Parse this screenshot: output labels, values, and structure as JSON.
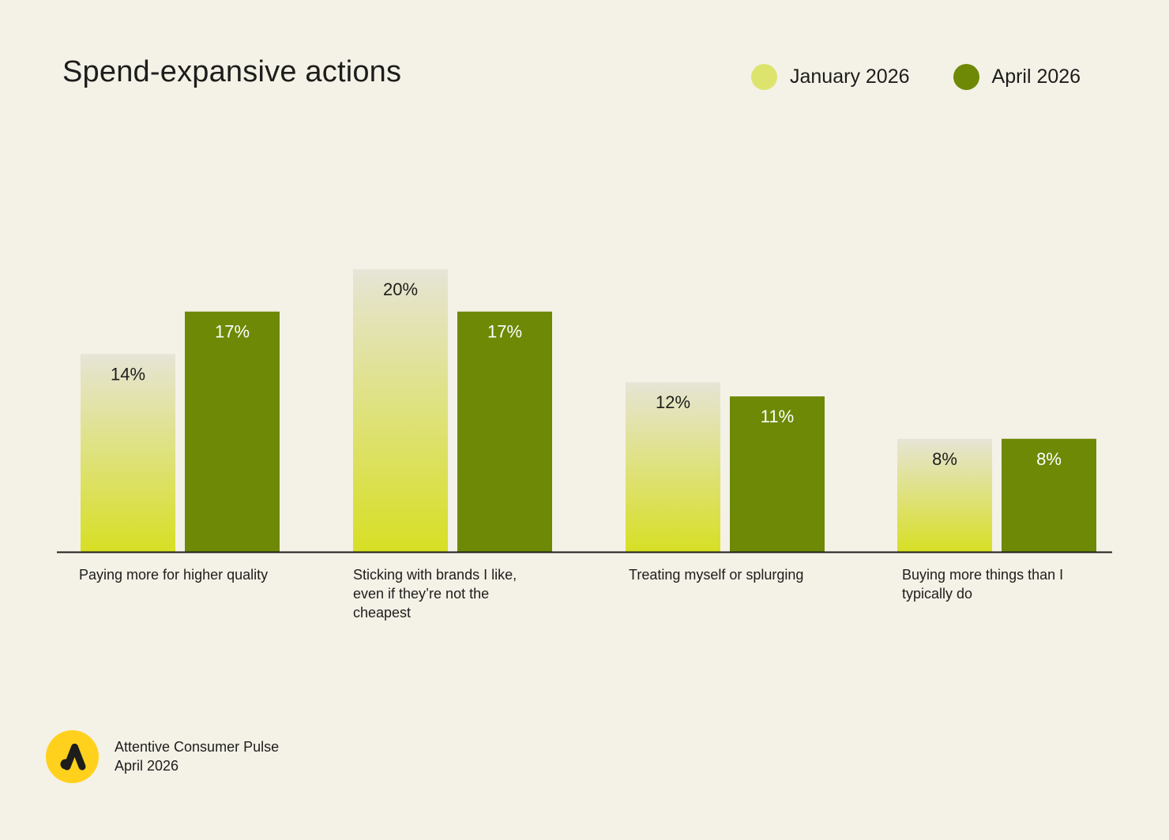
{
  "title": "Spend-expansive actions",
  "colors": {
    "background": "#f4f1e7",
    "january_top": "#e6e4d6",
    "january_bottom": "#d7df24",
    "january_legend": "#dde46d",
    "april": "#6d8906",
    "logo": "#ffd11c",
    "text": "#1d1d1b"
  },
  "legend": [
    {
      "label": "January 2026",
      "color": "#dde46d"
    },
    {
      "label": "April 2026",
      "color": "#6d8906"
    }
  ],
  "chart_data": {
    "type": "bar",
    "title": "Spend-expansive actions",
    "categories": [
      "Paying more for higher quality",
      "Sticking with brands I like, even if they’re not the cheapest",
      "Treating myself or splurging",
      "Buying more things than I typically do"
    ],
    "series": [
      {
        "name": "January 2026",
        "values": [
          14,
          20,
          12,
          8
        ],
        "labels": [
          "14%",
          "20%",
          "12%",
          "8%"
        ]
      },
      {
        "name": "April 2026",
        "values": [
          17,
          17,
          11,
          8
        ],
        "labels": [
          "17%",
          "17%",
          "11%",
          "8%"
        ]
      }
    ],
    "unit": "%",
    "ylim": [
      0,
      20
    ],
    "grid": false,
    "legend_position": "top-right"
  },
  "footer": {
    "logo_icon": "attentive-logo-icon",
    "line1": "Attentive Consumer Pulse",
    "line2": "April 2026"
  }
}
